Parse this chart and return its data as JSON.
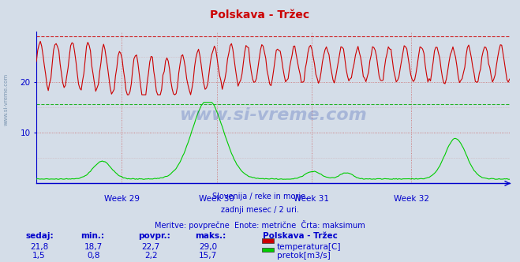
{
  "title": "Polskava - Tržec",
  "bg_color": "#d4dde8",
  "plot_bg_color": "#d4dde8",
  "line_color_temp": "#cc0000",
  "line_color_flow": "#00cc00",
  "grid_color_h": "#cc6666",
  "grid_color_v": "#cc6666",
  "grid_color_flow_max": "#00aa00",
  "axis_color": "#0000cc",
  "text_color": "#0000cc",
  "title_color": "#cc0000",
  "n_points": 360,
  "temp_max": 29.0,
  "flow_max": 15.7,
  "week_labels": [
    "Week 29",
    "Week 30",
    "Week 31",
    "Week 32"
  ],
  "subtitle_lines": [
    "Slovenija / reke in morje.",
    "zadnji mesec / 2 uri.",
    "Meritve: povprečne  Enote: metrične  Črta: maksimum"
  ],
  "legend_title": "Polskava - Tržec",
  "legend_items": [
    {
      "label": "temperatura[C]",
      "color": "#cc0000"
    },
    {
      "label": "pretok[m3/s]",
      "color": "#00cc00"
    }
  ],
  "table_headers": [
    "sedaj:",
    "min.:",
    "povpr.:",
    "maks.:"
  ],
  "table_row1": [
    "21,8",
    "18,7",
    "22,7",
    "29,0"
  ],
  "table_row2": [
    "1,5",
    "0,8",
    "2,2",
    "15,7"
  ],
  "watermark": "www.si-vreme.com"
}
